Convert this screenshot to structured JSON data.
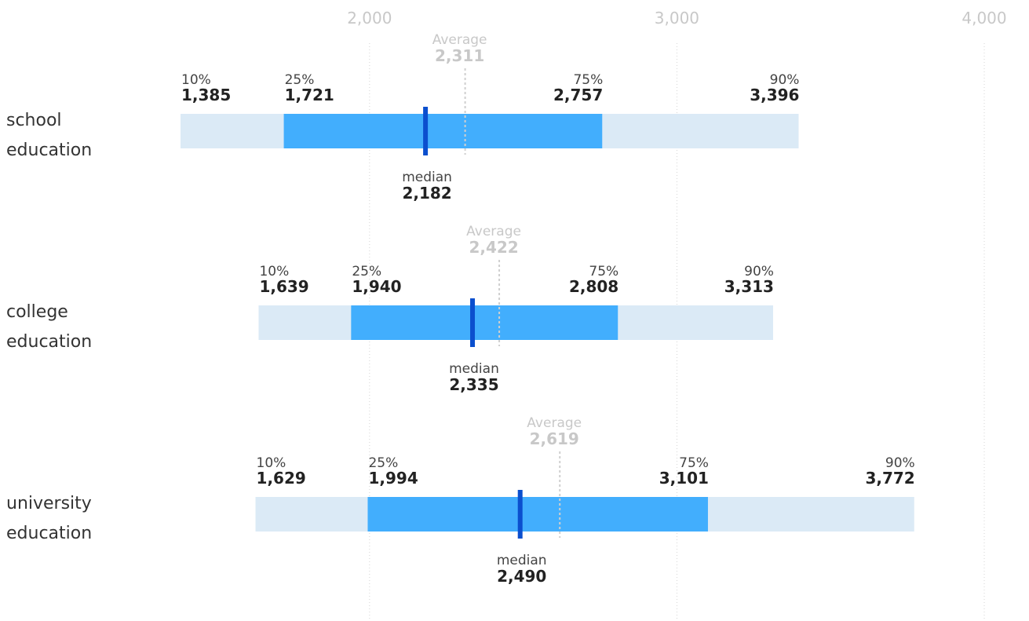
{
  "chart_data": {
    "type": "box",
    "x_axis": {
      "min": 1385,
      "max": 4000,
      "ticks": [
        2000,
        3000,
        4000
      ],
      "tick_labels": [
        "2,000",
        "3,000",
        "4,000"
      ]
    },
    "labels": {
      "p10": "10%",
      "p25": "25%",
      "p75": "75%",
      "p90": "90%",
      "median": "median",
      "average": "Average"
    },
    "rows": [
      {
        "label_lines": [
          "school",
          "education"
        ],
        "p10": 1385,
        "p25": 1721,
        "median": 2182,
        "p75": 2757,
        "p90": 3396,
        "average": 2311,
        "p10_text": "1,385",
        "p25_text": "1,721",
        "median_text": "2,182",
        "p75_text": "2,757",
        "p90_text": "3,396",
        "average_text": "2,311"
      },
      {
        "label_lines": [
          "college",
          "education"
        ],
        "p10": 1639,
        "p25": 1940,
        "median": 2335,
        "p75": 2808,
        "p90": 3313,
        "average": 2422,
        "p10_text": "1,639",
        "p25_text": "1,940",
        "median_text": "2,335",
        "p75_text": "2,808",
        "p90_text": "3,313",
        "average_text": "2,422"
      },
      {
        "label_lines": [
          "university",
          "education"
        ],
        "p10": 1629,
        "p25": 1994,
        "median": 2490,
        "p75": 3101,
        "p90": 3772,
        "average": 2619,
        "p10_text": "1,629",
        "p25_text": "1,994",
        "median_text": "2,490",
        "p75_text": "3,101",
        "p90_text": "3,772",
        "average_text": "2,619"
      }
    ],
    "grid": true,
    "colors": {
      "outer_band": "#dbeaf6",
      "inner_band": "#42aefd",
      "median_line": "#0b4fce",
      "average_line": "#cfcfcf",
      "grid_line": "#d5d5d5"
    }
  }
}
